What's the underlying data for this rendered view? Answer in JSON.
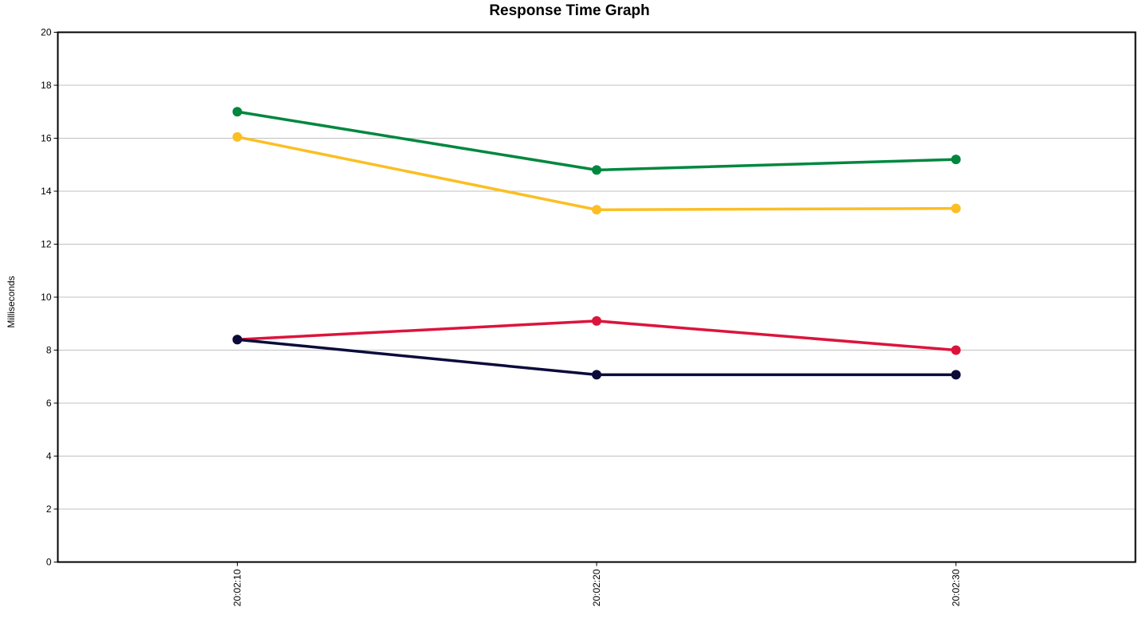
{
  "chart_data": {
    "type": "line",
    "title": "Response Time Graph",
    "xlabel": "",
    "ylabel": "Milliseconds",
    "x": [
      "20:02:10",
      "20:02:20",
      "20:02:30"
    ],
    "ylim": [
      0,
      20
    ],
    "yticks": [
      0,
      2,
      4,
      6,
      8,
      10,
      12,
      14,
      16,
      18,
      20
    ],
    "grid": true,
    "legend": "none",
    "series": [
      {
        "color": "#00873f",
        "values": [
          17.0,
          14.8,
          15.2
        ]
      },
      {
        "color": "#fbbf24",
        "values": [
          16.05,
          13.3,
          13.35
        ]
      },
      {
        "color": "#dc143c",
        "values": [
          8.4,
          9.1,
          8.0
        ]
      },
      {
        "color": "#0b0b3b",
        "values": [
          8.4,
          7.07,
          7.07
        ]
      }
    ]
  }
}
